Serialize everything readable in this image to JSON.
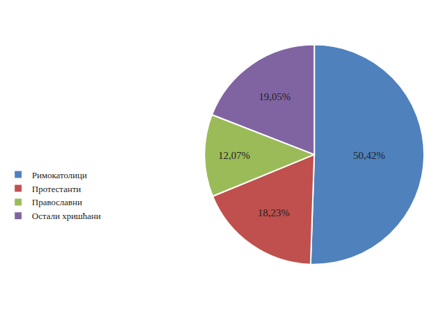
{
  "chart_data": {
    "type": "pie",
    "categories": [
      "Римокатолици",
      "Протестанти",
      "Православни",
      "Остали хришћани"
    ],
    "values": [
      50.42,
      18.23,
      12.07,
      19.05
    ],
    "value_labels": [
      "50,42%",
      "18,23%",
      "12,07%",
      "19,05%"
    ],
    "colors": [
      "#4f81bd",
      "#c0504d",
      "#9bbb59",
      "#8064a2"
    ],
    "data_labels": true,
    "legend": "left"
  }
}
